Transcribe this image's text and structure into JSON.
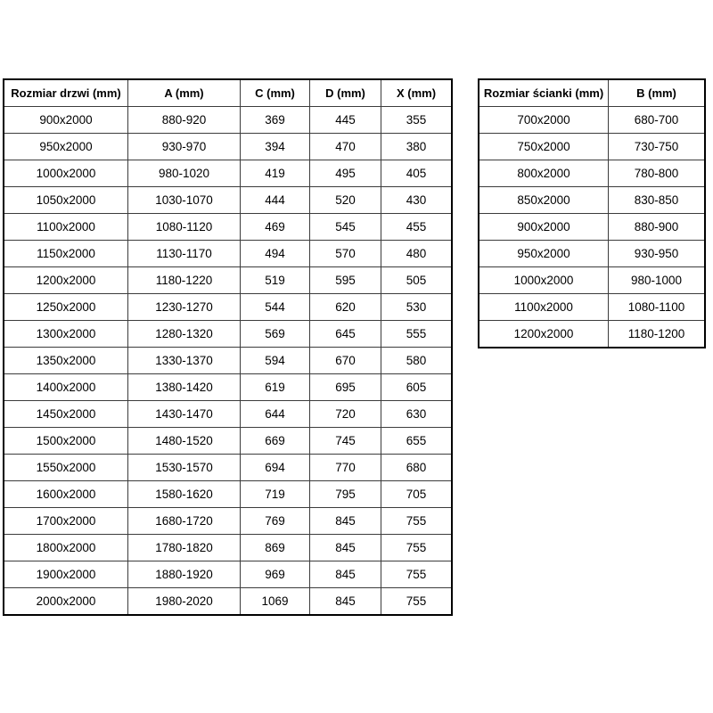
{
  "page": {
    "background_color": "#ffffff",
    "border_color": "#000000",
    "text_color": "#000000"
  },
  "tables": {
    "doors": {
      "headers": [
        "Rozmiar drzwi (mm)",
        "A (mm)",
        "C (mm)",
        "D (mm)",
        "X (mm)"
      ],
      "rows": [
        [
          "900x2000",
          "880-920",
          "369",
          "445",
          "355"
        ],
        [
          "950x2000",
          "930-970",
          "394",
          "470",
          "380"
        ],
        [
          "1000x2000",
          "980-1020",
          "419",
          "495",
          "405"
        ],
        [
          "1050x2000",
          "1030-1070",
          "444",
          "520",
          "430"
        ],
        [
          "1100x2000",
          "1080-1120",
          "469",
          "545",
          "455"
        ],
        [
          "1150x2000",
          "1130-1170",
          "494",
          "570",
          "480"
        ],
        [
          "1200x2000",
          "1180-1220",
          "519",
          "595",
          "505"
        ],
        [
          "1250x2000",
          "1230-1270",
          "544",
          "620",
          "530"
        ],
        [
          "1300x2000",
          "1280-1320",
          "569",
          "645",
          "555"
        ],
        [
          "1350x2000",
          "1330-1370",
          "594",
          "670",
          "580"
        ],
        [
          "1400x2000",
          "1380-1420",
          "619",
          "695",
          "605"
        ],
        [
          "1450x2000",
          "1430-1470",
          "644",
          "720",
          "630"
        ],
        [
          "1500x2000",
          "1480-1520",
          "669",
          "745",
          "655"
        ],
        [
          "1550x2000",
          "1530-1570",
          "694",
          "770",
          "680"
        ],
        [
          "1600x2000",
          "1580-1620",
          "719",
          "795",
          "705"
        ],
        [
          "1700x2000",
          "1680-1720",
          "769",
          "845",
          "755"
        ],
        [
          "1800x2000",
          "1780-1820",
          "869",
          "845",
          "755"
        ],
        [
          "1900x2000",
          "1880-1920",
          "969",
          "845",
          "755"
        ],
        [
          "2000x2000",
          "1980-2020",
          "1069",
          "845",
          "755"
        ]
      ]
    },
    "walls": {
      "headers": [
        "Rozmiar ścianki (mm)",
        "B (mm)"
      ],
      "rows": [
        [
          "700x2000",
          "680-700"
        ],
        [
          "750x2000",
          "730-750"
        ],
        [
          "800x2000",
          "780-800"
        ],
        [
          "850x2000",
          "830-850"
        ],
        [
          "900x2000",
          "880-900"
        ],
        [
          "950x2000",
          "930-950"
        ],
        [
          "1000x2000",
          "980-1000"
        ],
        [
          "1100x2000",
          "1080-1100"
        ],
        [
          "1200x2000",
          "1180-1200"
        ]
      ]
    }
  }
}
